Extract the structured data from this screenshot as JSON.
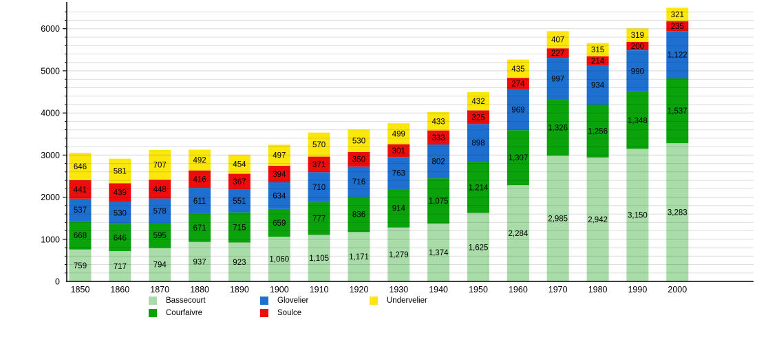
{
  "chart_data": {
    "type": "bar",
    "stacked": true,
    "title": "",
    "xlabel": "",
    "ylabel": "",
    "categories": [
      "1850",
      "1860",
      "1870",
      "1880",
      "1890",
      "1900",
      "1910",
      "1920",
      "1930",
      "1940",
      "1950",
      "1960",
      "1970",
      "1980",
      "1990",
      "2000"
    ],
    "series": [
      {
        "name": "Bassecourt",
        "color": "#aadcaa",
        "values": [
          759,
          717,
          794,
          937,
          923,
          1060,
          1105,
          1171,
          1279,
          1374,
          1625,
          2284,
          2985,
          2942,
          3150,
          3283
        ]
      },
      {
        "name": "Courfaivre",
        "color": "#0ba30b",
        "values": [
          668,
          646,
          595,
          671,
          715,
          659,
          777,
          836,
          914,
          1075,
          1214,
          1307,
          1326,
          1256,
          1348,
          1537
        ]
      },
      {
        "name": "Glovelier",
        "color": "#1e70d0",
        "values": [
          537,
          530,
          578,
          611,
          551,
          634,
          710,
          716,
          763,
          802,
          898,
          969,
          997,
          934,
          990,
          1122
        ]
      },
      {
        "name": "Soulce",
        "color": "#ee0d0d",
        "values": [
          441,
          439,
          448,
          416,
          367,
          394,
          371,
          350,
          301,
          333,
          325,
          274,
          227,
          214,
          200,
          235
        ]
      },
      {
        "name": "Undervelier",
        "color": "#fbe70c",
        "values": [
          646,
          581,
          707,
          492,
          454,
          497,
          570,
          530,
          499,
          433,
          432,
          435,
          407,
          315,
          319,
          321
        ]
      }
    ],
    "ylim": [
      0,
      6600
    ],
    "yticks": [
      0,
      1000,
      2000,
      3000,
      4000,
      5000,
      6000
    ],
    "minor_gridline_step": 200,
    "grid": true,
    "legend_position": "bottom",
    "legend_columns": [
      [
        "Bassecourt",
        "Courfaivre"
      ],
      [
        "Glovelier",
        "Soulce"
      ],
      [
        "Undervelier"
      ]
    ],
    "axis_color": "#000000",
    "gridline_color": "rgba(0,0,0,0.13)",
    "label_color": "#000000"
  }
}
